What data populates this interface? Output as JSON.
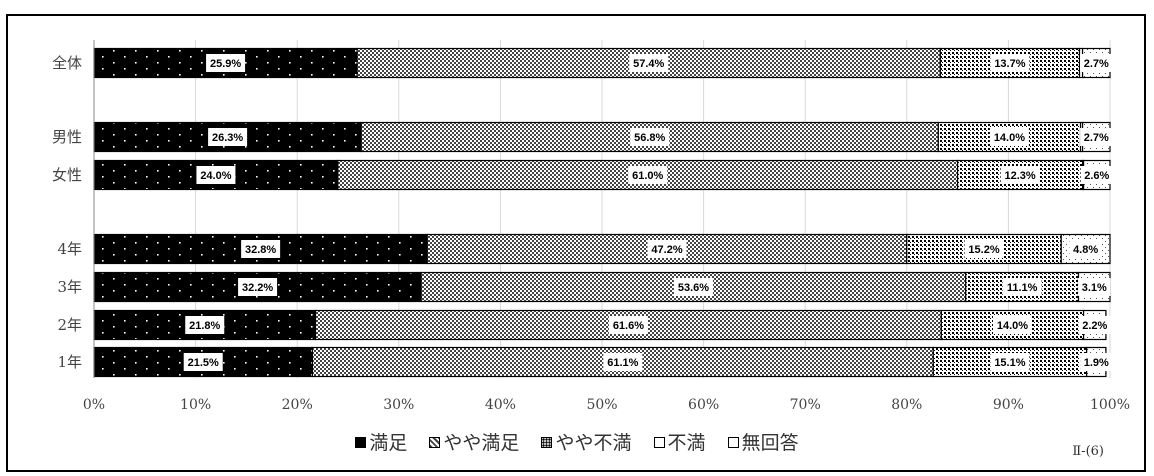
{
  "chart_data": {
    "type": "bar",
    "orientation": "horizontal",
    "stacked": true,
    "categories": [
      "全体",
      "男性",
      "女性",
      "4年",
      "3年",
      "2年",
      "1年"
    ],
    "series": [
      {
        "name": "満足",
        "values": [
          25.9,
          26.3,
          24.0,
          32.8,
          32.2,
          21.8,
          21.5
        ],
        "pattern": "dots-on-black"
      },
      {
        "name": "やや満足",
        "values": [
          57.4,
          56.8,
          61.0,
          47.2,
          53.6,
          61.6,
          61.1
        ],
        "pattern": "checker"
      },
      {
        "name": "やや不満",
        "values": [
          13.7,
          14.0,
          12.3,
          15.2,
          11.1,
          14.0,
          15.1
        ],
        "pattern": "dense-dots"
      },
      {
        "name": "不満",
        "values": [
          0.3,
          0.2,
          0.1,
          0.0,
          0.0,
          0.0,
          0.0
        ],
        "pattern": "white"
      },
      {
        "name": "無回答",
        "values": [
          2.7,
          2.7,
          2.6,
          4.8,
          3.1,
          2.2,
          1.9
        ],
        "pattern": "fine-dots"
      }
    ],
    "data_labels": {
      "満足": [
        "25.9%",
        "26.3%",
        "24.0%",
        "32.8%",
        "32.2%",
        "21.8%",
        "21.5%"
      ],
      "やや満足": [
        "57.4%",
        "56.8%",
        "61.0%",
        "47.2%",
        "53.6%",
        "61.6%",
        "61.1%"
      ],
      "やや不満": [
        "13.7%",
        "14.0%",
        "12.3%",
        "15.2%",
        "11.1%",
        "14.0%",
        "15.1%"
      ],
      "無回答": [
        "2.7%",
        "2.7%",
        "2.6%",
        "4.8%",
        "3.1%",
        "2.2%",
        "1.9%"
      ]
    },
    "x_ticks": [
      "0%",
      "10%",
      "20%",
      "30%",
      "40%",
      "50%",
      "60%",
      "70%",
      "80%",
      "90%",
      "100%"
    ],
    "xlim": [
      0,
      100
    ],
    "grid": true,
    "legend_position": "bottom",
    "legend_labels": [
      "満足",
      "やや満足",
      "やや不満",
      "不満",
      "無回答"
    ]
  },
  "page_number": "Ⅱ-(6)"
}
